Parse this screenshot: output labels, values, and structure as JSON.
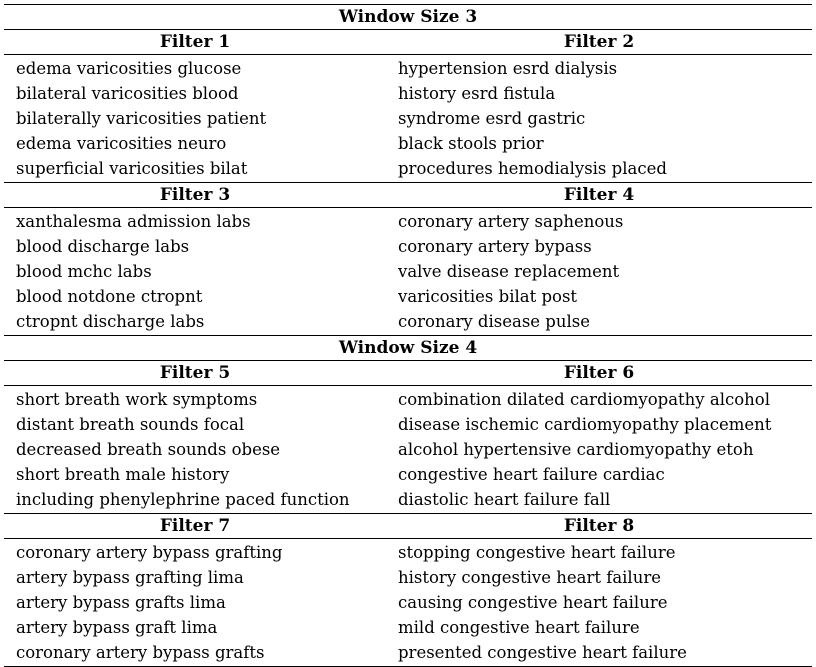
{
  "sections": [
    {
      "title": "Window Size 3",
      "blocks": [
        {
          "left_header": "Filter 1",
          "right_header": "Filter 2",
          "rows": [
            [
              "edema varicosities glucose",
              "hypertension esrd dialysis"
            ],
            [
              "bilateral varicosities blood",
              "history esrd fistula"
            ],
            [
              "bilaterally varicosities patient",
              "syndrome esrd gastric"
            ],
            [
              "edema varicosities neuro",
              "black stools prior"
            ],
            [
              "superficial varicosities bilat",
              "procedures hemodialysis placed"
            ]
          ]
        },
        {
          "left_header": "Filter 3",
          "right_header": "Filter 4",
          "rows": [
            [
              "xanthalesma admission labs",
              "coronary artery saphenous"
            ],
            [
              "blood discharge labs",
              "coronary artery bypass"
            ],
            [
              "blood mchc labs",
              "valve disease replacement"
            ],
            [
              "blood notdone ctropnt",
              "varicosities bilat post"
            ],
            [
              "ctropnt discharge labs",
              "coronary disease pulse"
            ]
          ]
        }
      ]
    },
    {
      "title": "Window Size 4",
      "blocks": [
        {
          "left_header": "Filter 5",
          "right_header": "Filter 6",
          "rows": [
            [
              "short breath work symptoms",
              "combination dilated cardiomyopathy alcohol"
            ],
            [
              "distant breath sounds focal",
              "disease ischemic cardiomyopathy placement"
            ],
            [
              "decreased breath sounds obese",
              "alcohol hypertensive cardiomyopathy etoh"
            ],
            [
              "short breath male history",
              "congestive heart failure cardiac"
            ],
            [
              "including phenylephrine paced function",
              "diastolic heart failure fall"
            ]
          ]
        },
        {
          "left_header": "Filter 7",
          "right_header": "Filter 8",
          "rows": [
            [
              "coronary artery bypass grafting",
              "stopping congestive heart failure"
            ],
            [
              "artery bypass grafting lima",
              "history congestive heart failure"
            ],
            [
              "artery bypass grafts lima",
              "causing congestive heart failure"
            ],
            [
              "artery bypass graft lima",
              "mild congestive heart failure"
            ],
            [
              "coronary artery bypass grafts",
              "presented congestive heart failure"
            ]
          ]
        }
      ]
    }
  ]
}
